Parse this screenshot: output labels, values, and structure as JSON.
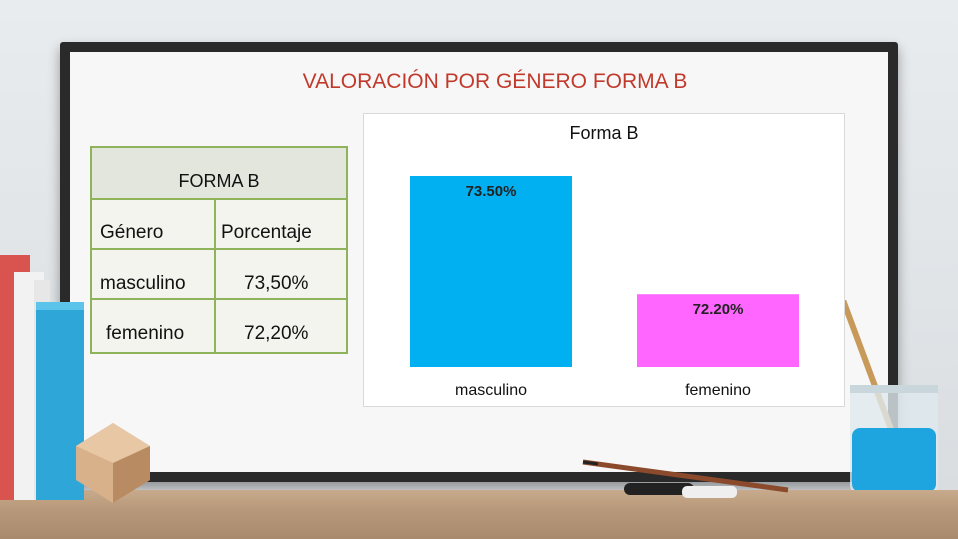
{
  "slide": {
    "title": "VALORACIÓN POR GÉNERO FORMA B"
  },
  "table": {
    "caption": "FORMA B",
    "headers": [
      "Género",
      "Porcentaje"
    ],
    "rows": [
      {
        "genero": "masculino",
        "porcentaje": "73,50%"
      },
      {
        "genero": "femenino",
        "porcentaje": "72,20%"
      }
    ]
  },
  "chart_data": {
    "type": "bar",
    "title": "Forma B",
    "categories": [
      "masculino",
      "femenino"
    ],
    "values": [
      73.5,
      72.2
    ],
    "data_labels": [
      "73.50%",
      "72.20%"
    ],
    "colors": [
      "#00b0f0",
      "#ff66ff"
    ],
    "xlabel": "",
    "ylabel": "",
    "ylim": [
      71.4,
      73.5
    ],
    "grid": false,
    "legend": "none"
  },
  "colors": {
    "title": "#c0392b",
    "table_border": "#8fb35a"
  }
}
